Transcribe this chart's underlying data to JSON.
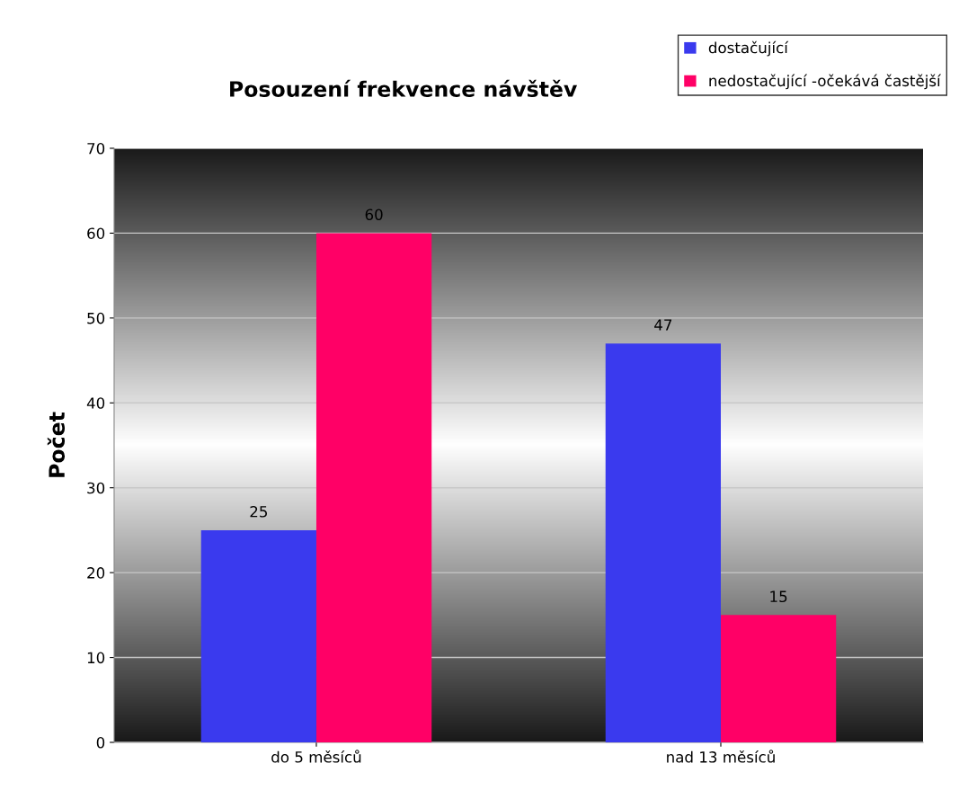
{
  "chart_data": {
    "type": "bar",
    "title": "Posouzení frekvence návštěv",
    "ylabel": "Počet",
    "categories": [
      "do 5 měsíců",
      "nad 13 měsíců"
    ],
    "series": [
      {
        "name": "dostačující",
        "color": "#3a3aee",
        "values": [
          25,
          47
        ]
      },
      {
        "name": "nedostačující -očekává častější",
        "color": "#ff0066",
        "values": [
          60,
          15
        ]
      }
    ],
    "ylim": [
      0,
      70
    ],
    "yticks": [
      0,
      10,
      20,
      30,
      40,
      50,
      60,
      70
    ],
    "grid": "y",
    "legend": "top right",
    "data_labels": true
  }
}
